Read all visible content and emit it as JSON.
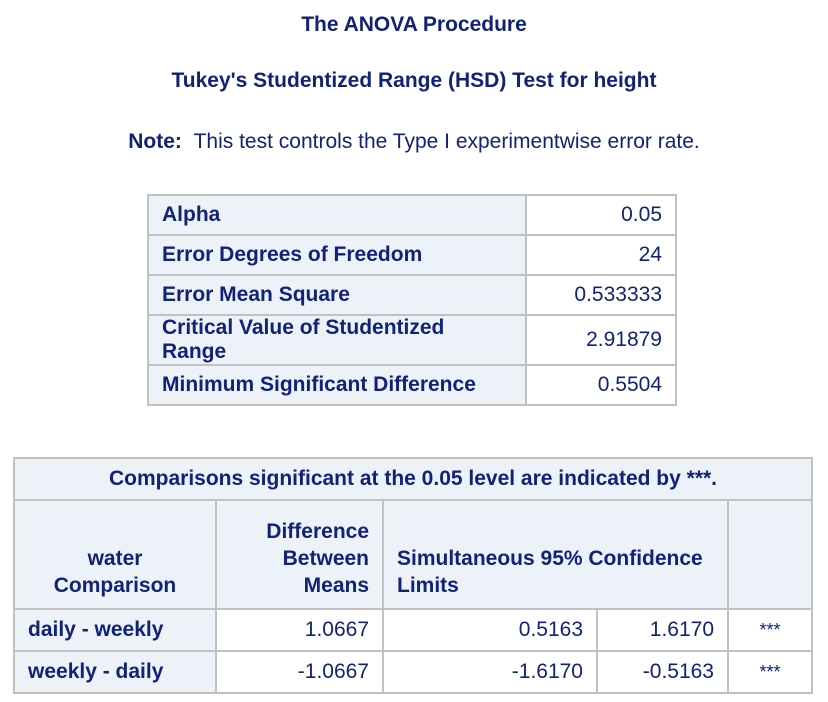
{
  "header": {
    "procedure_title": "The ANOVA Procedure",
    "test_title": "Tukey's Studentized Range (HSD) Test for height"
  },
  "note": {
    "label": "Note:",
    "text": "This test controls the Type I experimentwise error rate."
  },
  "info_table": {
    "rows": [
      {
        "label": "Alpha",
        "value": "0.05"
      },
      {
        "label": "Error Degrees of Freedom",
        "value": "24"
      },
      {
        "label": "Error Mean Square",
        "value": "0.533333"
      },
      {
        "label": "Critical Value of Studentized Range",
        "value": "2.91879"
      },
      {
        "label": "Minimum Significant Difference",
        "value": "0.5504"
      }
    ]
  },
  "comparison_table": {
    "caption": "Comparisons significant at the 0.05 level are indicated by ***.",
    "headers": {
      "comparison_line1": "water",
      "comparison_line2": "Comparison",
      "difference_line1": "Difference",
      "difference_line2": "Between",
      "difference_line3": "Means",
      "limits": "Simultaneous 95% Confidence Limits",
      "significance": ""
    },
    "rows": [
      {
        "comparison": "daily - weekly",
        "difference": "1.0667",
        "lower": "0.5163",
        "upper": "1.6170",
        "sig": "***"
      },
      {
        "comparison": "weekly - daily",
        "difference": "-1.0667",
        "lower": "-1.6170",
        "upper": "-0.5163",
        "sig": "***"
      }
    ]
  },
  "colors": {
    "text": "#112277",
    "header_bg": "#edf2f9",
    "border": "#c1c1c1"
  }
}
